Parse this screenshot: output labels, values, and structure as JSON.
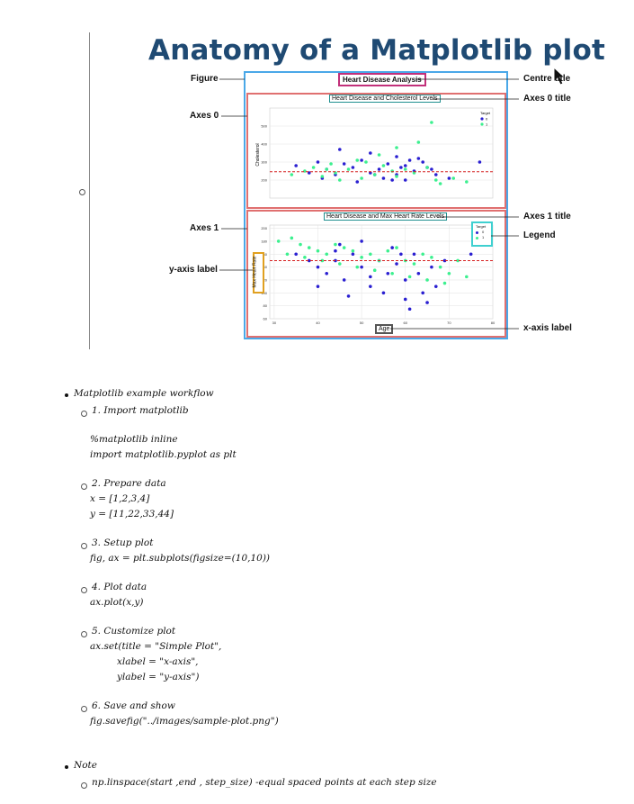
{
  "heading": "Anatomy of a Matplotlib plot",
  "figure": {
    "suptitle": "Heart Disease Analysis",
    "axes0_title": "Heart Disease and Cholesterol Levels",
    "axes1_title": "Heart Disease and Max Heart Rate Levels",
    "axes0_ylabel": "Cholesterol",
    "axes1_ylabel": "Max Heart Rate",
    "xlabel": "Age",
    "legend_title": "Target",
    "legend_items": [
      "0",
      "1"
    ],
    "colors": {
      "target0": "#2a1fd1",
      "target1": "#3cf08f",
      "mean_line": "#d62020"
    },
    "axes0_yticks": [
      "200",
      "300",
      "400",
      "500"
    ],
    "axes1_yticks": [
      "60",
      "80",
      "100",
      "120",
      "140",
      "160",
      "180",
      "200"
    ],
    "xticks": [
      "30",
      "40",
      "50",
      "60",
      "70",
      "80"
    ]
  },
  "chart_data": [
    {
      "type": "scatter",
      "title": "Heart Disease and Cholesterol Levels",
      "xlabel": "",
      "ylabel": "Cholesterol",
      "xlim": [
        29,
        80
      ],
      "ylim": [
        100,
        600
      ],
      "grid": true,
      "legend": "top-right",
      "hline": 246,
      "series": [
        {
          "name": "0",
          "points": [
            [
              35,
              280
            ],
            [
              38,
              240
            ],
            [
              40,
              300
            ],
            [
              42,
              260
            ],
            [
              44,
              230
            ],
            [
              46,
              290
            ],
            [
              48,
              270
            ],
            [
              50,
              310
            ],
            [
              52,
              240
            ],
            [
              54,
              260
            ],
            [
              56,
              290
            ],
            [
              58,
              230
            ],
            [
              60,
              280
            ],
            [
              62,
              250
            ],
            [
              64,
              300
            ],
            [
              66,
              260
            ],
            [
              45,
              370
            ],
            [
              52,
              350
            ],
            [
              58,
              330
            ],
            [
              63,
              320
            ],
            [
              70,
              210
            ],
            [
              77,
              300
            ],
            [
              41,
              210
            ],
            [
              55,
              210
            ],
            [
              60,
              200
            ],
            [
              67,
              230
            ],
            [
              49,
              190
            ],
            [
              57,
              200
            ],
            [
              65,
              270
            ],
            [
              53,
              230
            ],
            [
              59,
              270
            ],
            [
              61,
              310
            ]
          ]
        },
        {
          "name": "1",
          "points": [
            [
              34,
              230
            ],
            [
              37,
              250
            ],
            [
              39,
              270
            ],
            [
              41,
              220
            ],
            [
              43,
              290
            ],
            [
              44,
              240
            ],
            [
              47,
              260
            ],
            [
              50,
              210
            ],
            [
              51,
              300
            ],
            [
              53,
              230
            ],
            [
              55,
              280
            ],
            [
              57,
              250
            ],
            [
              58,
              220
            ],
            [
              60,
              260
            ],
            [
              62,
              240
            ],
            [
              65,
              270
            ],
            [
              67,
              200
            ],
            [
              71,
              210
            ],
            [
              74,
              190
            ],
            [
              63,
              410
            ],
            [
              66,
              520
            ],
            [
              68,
              180
            ],
            [
              45,
              200
            ],
            [
              49,
              310
            ],
            [
              54,
              340
            ],
            [
              58,
              380
            ],
            [
              42,
              260
            ]
          ]
        }
      ]
    },
    {
      "type": "scatter",
      "title": "Heart Disease and Max Heart Rate Levels",
      "xlabel": "Age",
      "ylabel": "Max Heart Rate",
      "xlim": [
        29,
        80
      ],
      "ylim": [
        60,
        205
      ],
      "grid": true,
      "legend": "top-right",
      "hline": 150,
      "series": [
        {
          "name": "0",
          "points": [
            [
              35,
              160
            ],
            [
              38,
              150
            ],
            [
              40,
              140
            ],
            [
              42,
              130
            ],
            [
              44,
              150
            ],
            [
              46,
              120
            ],
            [
              48,
              160
            ],
            [
              50,
              140
            ],
            [
              52,
              110
            ],
            [
              54,
              150
            ],
            [
              56,
              130
            ],
            [
              58,
              145
            ],
            [
              60,
              120
            ],
            [
              62,
              160
            ],
            [
              64,
              100
            ],
            [
              66,
              140
            ],
            [
              45,
              175
            ],
            [
              50,
              180
            ],
            [
              57,
              170
            ],
            [
              40,
              110
            ],
            [
              55,
              100
            ],
            [
              60,
              90
            ],
            [
              65,
              85
            ],
            [
              69,
              150
            ],
            [
              63,
              130
            ],
            [
              59,
              160
            ],
            [
              52,
              125
            ],
            [
              47,
              95
            ],
            [
              44,
              165
            ],
            [
              67,
              110
            ],
            [
              61,
              75
            ],
            [
              75,
              160
            ]
          ]
        },
        {
          "name": "1",
          "points": [
            [
              31,
              180
            ],
            [
              34,
              185
            ],
            [
              36,
              175
            ],
            [
              38,
              170
            ],
            [
              40,
              165
            ],
            [
              42,
              160
            ],
            [
              44,
              175
            ],
            [
              46,
              170
            ],
            [
              48,
              165
            ],
            [
              50,
              155
            ],
            [
              52,
              160
            ],
            [
              54,
              150
            ],
            [
              56,
              165
            ],
            [
              58,
              170
            ],
            [
              60,
              150
            ],
            [
              62,
              145
            ],
            [
              64,
              160
            ],
            [
              66,
              155
            ],
            [
              68,
              140
            ],
            [
              70,
              130
            ],
            [
              72,
              150
            ],
            [
              74,
              125
            ],
            [
              33,
              160
            ],
            [
              37,
              155
            ],
            [
              41,
              150
            ],
            [
              45,
              145
            ],
            [
              49,
              140
            ],
            [
              53,
              135
            ],
            [
              57,
              130
            ],
            [
              61,
              125
            ],
            [
              65,
              120
            ],
            [
              69,
              115
            ]
          ]
        }
      ]
    }
  ],
  "callouts": {
    "figure": "Figure",
    "axes0": "Axes 0",
    "axes1": "Axes 1",
    "yaxis": "y-axis label",
    "centre_title": "Centre title",
    "axes0_title": "Axes 0 title",
    "axes1_title": "Axes 1 title",
    "legend": "Legend",
    "xaxis": "x-axis label"
  },
  "notes": {
    "workflow_heading": "Matplotlib example workflow",
    "steps": [
      {
        "title": "1. Import matplotlib",
        "code": [
          "%matplotlib inline",
          "import matplotlib.pyplot as plt"
        ]
      },
      {
        "title": "2. Prepare data",
        "code": [
          "x = [1,2,3,4]",
          "y = [11,22,33,44]"
        ]
      },
      {
        "title": "3. Setup plot",
        "code": [
          "fig, ax = plt.subplots(figsize=(10,10))"
        ]
      },
      {
        "title": "4. Plot data",
        "code": [
          "ax.plot(x,y)"
        ]
      },
      {
        "title": "5. Customize plot",
        "code": [
          "ax.set(title = \"Simple Plot\",",
          "xlabel = \"x-axis\",",
          "ylabel = \"y-axis\")"
        ]
      },
      {
        "title": "6. Save and show",
        "code": [
          "fig.savefig(\"../images/sample-plot.png\")"
        ]
      }
    ],
    "note_heading": "Note",
    "note_text": "np.linspace(start ,end , step_size)   -equal spaced points at each step size"
  }
}
